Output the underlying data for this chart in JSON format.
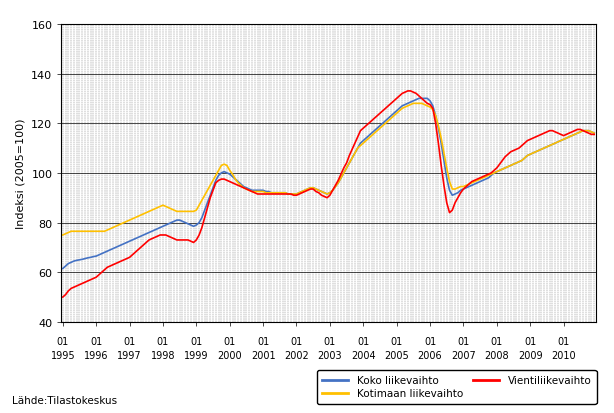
{
  "ylabel": "Indeksi (2005=100)",
  "source_text": "Lähde:Tilastokeskus",
  "ylim": [
    40,
    160
  ],
  "yticks": [
    40,
    60,
    80,
    100,
    120,
    140,
    160
  ],
  "line_colors": {
    "koko": "#4472c4",
    "kotimaan": "#ffc000",
    "vienti": "#ff0000"
  },
  "legend_labels": [
    "Koko liikevaihto",
    "Kotimaan liikevaihto",
    "Vientiliikevaihto"
  ],
  "koko_liikevaihto": [
    61.5,
    62.5,
    63.5,
    64.0,
    64.5,
    64.8,
    65.0,
    65.2,
    65.5,
    65.8,
    66.0,
    66.3,
    66.5,
    67.0,
    67.5,
    68.0,
    68.5,
    69.0,
    69.5,
    70.0,
    70.5,
    71.0,
    71.5,
    72.0,
    72.5,
    73.0,
    73.5,
    74.0,
    74.5,
    75.0,
    75.5,
    76.0,
    76.5,
    77.0,
    77.5,
    78.0,
    78.5,
    79.0,
    79.5,
    80.0,
    80.5,
    81.0,
    81.0,
    80.5,
    80.0,
    79.5,
    79.0,
    78.5,
    79.0,
    80.0,
    82.0,
    85.0,
    88.0,
    91.0,
    94.0,
    97.0,
    99.0,
    100.0,
    100.5,
    100.0,
    99.5,
    98.5,
    97.5,
    96.5,
    95.5,
    94.5,
    94.0,
    93.5,
    93.0,
    93.0,
    93.0,
    93.0,
    93.0,
    92.5,
    92.5,
    92.0,
    92.0,
    92.0,
    92.0,
    92.0,
    92.0,
    91.5,
    91.5,
    91.5,
    91.5,
    92.0,
    92.5,
    93.0,
    93.5,
    94.0,
    94.0,
    93.5,
    93.0,
    92.5,
    92.0,
    91.5,
    92.0,
    93.0,
    94.5,
    96.0,
    98.0,
    100.0,
    102.0,
    104.0,
    106.0,
    108.0,
    110.0,
    112.0,
    113.0,
    114.0,
    115.0,
    116.0,
    117.0,
    118.0,
    119.0,
    120.0,
    121.0,
    122.0,
    123.0,
    124.0,
    125.0,
    126.0,
    127.0,
    127.5,
    128.0,
    128.5,
    129.0,
    129.5,
    130.0,
    130.0,
    130.0,
    130.0,
    129.0,
    127.0,
    123.0,
    118.0,
    112.0,
    105.0,
    98.0,
    93.0,
    91.0,
    91.5,
    92.0,
    93.0,
    93.5,
    94.0,
    94.5,
    95.0,
    95.5,
    96.0,
    96.5,
    97.0,
    97.5,
    98.0,
    99.0,
    100.0,
    100.5,
    101.0,
    101.5,
    102.0,
    102.5,
    103.0,
    103.5,
    104.0,
    104.5,
    105.0,
    106.0,
    107.0,
    107.5,
    108.0,
    108.5,
    109.0,
    109.5,
    110.0,
    110.5,
    111.0,
    111.5,
    112.0,
    112.5,
    113.0,
    113.5,
    114.0,
    114.5,
    115.0,
    115.5,
    116.0,
    116.5,
    117.0,
    117.0,
    117.0,
    116.5,
    116.0
  ],
  "kotimaan_liikevaihto": [
    75.0,
    75.5,
    76.0,
    76.5,
    76.5,
    76.5,
    76.5,
    76.5,
    76.5,
    76.5,
    76.5,
    76.5,
    76.5,
    76.5,
    76.5,
    76.5,
    77.0,
    77.5,
    78.0,
    78.5,
    79.0,
    79.5,
    80.0,
    80.5,
    81.0,
    81.5,
    82.0,
    82.5,
    83.0,
    83.5,
    84.0,
    84.5,
    85.0,
    85.5,
    86.0,
    86.5,
    87.0,
    86.5,
    86.0,
    85.5,
    85.0,
    84.5,
    84.5,
    84.5,
    84.5,
    84.5,
    84.5,
    84.5,
    85.0,
    87.0,
    89.0,
    91.0,
    93.0,
    95.0,
    97.0,
    99.0,
    101.0,
    103.0,
    103.5,
    103.0,
    101.0,
    99.5,
    97.5,
    96.0,
    95.0,
    94.0,
    93.5,
    93.0,
    92.5,
    92.5,
    92.5,
    92.5,
    92.5,
    92.0,
    92.0,
    92.0,
    92.0,
    92.0,
    92.0,
    92.0,
    92.0,
    91.5,
    91.5,
    91.5,
    91.5,
    92.0,
    92.5,
    93.0,
    93.5,
    94.0,
    94.0,
    93.5,
    93.0,
    92.5,
    92.0,
    91.5,
    92.0,
    93.0,
    94.5,
    96.0,
    98.0,
    100.0,
    102.0,
    104.0,
    106.0,
    108.0,
    110.0,
    111.0,
    112.0,
    113.0,
    114.0,
    115.0,
    116.0,
    117.0,
    118.0,
    119.0,
    120.0,
    121.0,
    122.0,
    123.0,
    124.0,
    125.0,
    126.0,
    126.5,
    127.0,
    127.5,
    128.0,
    128.0,
    128.0,
    128.0,
    127.5,
    127.0,
    126.5,
    125.5,
    123.0,
    119.0,
    114.0,
    108.0,
    102.0,
    96.5,
    93.5,
    93.5,
    94.0,
    94.5,
    94.5,
    95.0,
    95.5,
    96.0,
    96.5,
    97.0,
    97.5,
    98.0,
    98.5,
    99.0,
    99.5,
    100.0,
    100.5,
    101.0,
    101.5,
    102.0,
    102.5,
    103.0,
    103.5,
    104.0,
    104.5,
    105.0,
    106.0,
    107.0,
    107.5,
    108.0,
    108.5,
    109.0,
    109.5,
    110.0,
    110.5,
    111.0,
    111.5,
    112.0,
    112.5,
    113.0,
    113.5,
    114.0,
    114.5,
    115.0,
    115.5,
    116.0,
    116.5,
    117.0,
    117.0,
    117.0,
    116.5,
    116.0
  ],
  "vienti_liikevaihto": [
    50.0,
    51.0,
    52.5,
    53.5,
    54.0,
    54.5,
    55.0,
    55.5,
    56.0,
    56.5,
    57.0,
    57.5,
    58.0,
    59.0,
    60.0,
    61.0,
    62.0,
    62.5,
    63.0,
    63.5,
    64.0,
    64.5,
    65.0,
    65.5,
    66.0,
    67.0,
    68.0,
    69.0,
    70.0,
    71.0,
    72.0,
    73.0,
    73.5,
    74.0,
    74.5,
    75.0,
    75.0,
    75.0,
    74.5,
    74.0,
    73.5,
    73.0,
    73.0,
    73.0,
    73.0,
    73.0,
    72.5,
    72.0,
    73.0,
    75.0,
    78.0,
    82.0,
    86.0,
    90.0,
    93.0,
    96.0,
    97.0,
    97.5,
    97.5,
    97.0,
    96.5,
    96.0,
    95.5,
    95.0,
    94.5,
    94.0,
    93.5,
    93.0,
    92.5,
    92.0,
    91.5,
    91.5,
    91.5,
    91.5,
    91.5,
    91.5,
    91.5,
    91.5,
    91.5,
    91.5,
    91.5,
    91.5,
    91.5,
    91.0,
    91.0,
    91.5,
    92.0,
    92.5,
    93.0,
    93.5,
    93.5,
    92.5,
    92.0,
    91.0,
    90.5,
    90.0,
    91.0,
    93.0,
    95.0,
    97.0,
    99.5,
    102.0,
    104.0,
    107.0,
    109.5,
    112.0,
    114.5,
    117.0,
    118.0,
    119.0,
    120.0,
    121.0,
    122.0,
    123.0,
    124.0,
    125.0,
    126.0,
    127.0,
    128.0,
    129.0,
    130.0,
    131.0,
    132.0,
    132.5,
    133.0,
    133.0,
    132.5,
    132.0,
    131.0,
    130.0,
    129.0,
    128.0,
    127.5,
    126.0,
    120.0,
    112.0,
    103.0,
    95.0,
    88.0,
    84.0,
    85.0,
    88.0,
    90.0,
    92.0,
    93.5,
    94.5,
    95.5,
    96.5,
    97.0,
    97.5,
    98.0,
    98.5,
    99.0,
    99.5,
    100.0,
    101.0,
    102.0,
    103.5,
    105.0,
    106.5,
    107.5,
    108.5,
    109.0,
    109.5,
    110.0,
    111.0,
    112.0,
    113.0,
    113.5,
    114.0,
    114.5,
    115.0,
    115.5,
    116.0,
    116.5,
    117.0,
    117.0,
    116.5,
    116.0,
    115.5,
    115.0,
    115.5,
    116.0,
    116.5,
    117.0,
    117.5,
    117.5,
    117.0,
    116.5,
    116.0,
    115.5,
    115.5
  ]
}
